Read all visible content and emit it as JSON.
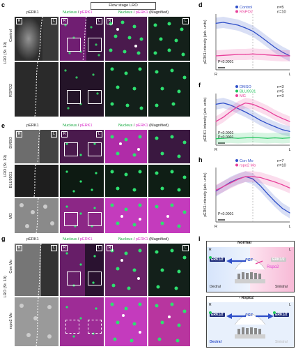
{
  "panels": {
    "c": {
      "letter": "c",
      "title": "Flow stage LRO",
      "col1": "pERK1",
      "col2_a": "Nucleus",
      "col2_sep": " / ",
      "col2_b": "pERK1",
      "col3_a": "Nucleus",
      "col3_sep": " / ",
      "col3_b": "pERK1",
      "col3_c": " (Magnified)",
      "group": "LRO (St. 19)",
      "rows": [
        "Control",
        "RSPO2"
      ]
    },
    "e": {
      "letter": "e",
      "col1": "pERK1",
      "col2_a": "Nucleus",
      "col2_sep": " / ",
      "col2_b": "pERK1",
      "col3_a": "Nucleus",
      "col3_sep": " / ",
      "col3_b": "pERK1",
      "col3_c": " (Magnified)",
      "group": "LRO (St. 19)",
      "rows": [
        "DMSO",
        "BLU9931",
        "MG"
      ]
    },
    "g": {
      "letter": "g",
      "col1": "pERK1",
      "col2_a": "Nucleus",
      "col2_sep": " / ",
      "col2_b": "pERK1",
      "col3_a": "Nucleus",
      "col3_sep": " / ",
      "col3_b": "pERK1",
      "col3_c": " (Magnified)",
      "group": "LRO (St. 19)",
      "rows": [
        "Con Mo",
        "rspo2 Mo"
      ]
    },
    "i": {
      "letter": "i",
      "normal_title": "Normal",
      "rspo2_title": "- Rspo2",
      "left": "R",
      "right": "L",
      "erk": "ERK1/2",
      "fgf": "FGF",
      "rspo2": "Rspo2",
      "dextral": "Dextral",
      "sinistral": "Sinistral"
    }
  },
  "badges": {
    "r": "R",
    "l": "L"
  },
  "colors": {
    "magenta": "#e23bd2",
    "green": "#22c55e",
    "blue": "#2f4fc8",
    "pink": "#e8409a",
    "line_pink": "#f06ab0"
  },
  "chart_data": [
    {
      "panel": "d",
      "type": "line",
      "ylabel": "pERK1 intensity (arb. units)",
      "xlabel_left": "R",
      "xlabel_right": "L",
      "pvalue": "P<0.0001",
      "ylim": [
        0,
        1.2
      ],
      "x": [
        0,
        0.1,
        0.2,
        0.3,
        0.4,
        0.5,
        0.6,
        0.7,
        0.8,
        0.9,
        1.0
      ],
      "series": [
        {
          "name": "Control",
          "n": "n=5",
          "color": "#2f4fc8",
          "values": [
            1.0,
            1.02,
            0.99,
            0.96,
            0.9,
            0.83,
            0.72,
            0.6,
            0.48,
            0.38,
            0.3
          ]
        },
        {
          "name": "RSPO2",
          "n": "n=10",
          "color": "#e8409a",
          "values": [
            0.3,
            0.31,
            0.32,
            0.33,
            0.33,
            0.34,
            0.33,
            0.32,
            0.31,
            0.3,
            0.3
          ]
        }
      ]
    },
    {
      "panel": "f",
      "type": "line",
      "ylabel": "pERK1 intensity (arb. units)",
      "xlabel_left": "R",
      "xlabel_right": "L",
      "pvalues": [
        "P<0.0001",
        "P<0.0001"
      ],
      "ylim": [
        0,
        1.2
      ],
      "x": [
        0,
        0.1,
        0.2,
        0.3,
        0.4,
        0.5,
        0.6,
        0.7,
        0.8,
        0.9,
        1.0
      ],
      "series": [
        {
          "name": "DMSO",
          "n": "n=3",
          "color": "#2f4fc8",
          "values": [
            0.95,
            0.98,
            0.93,
            0.85,
            0.77,
            0.68,
            0.58,
            0.5,
            0.43,
            0.36,
            0.32
          ]
        },
        {
          "name": "BLU9931",
          "n": "n=5",
          "color": "#22c55e",
          "values": [
            0.15,
            0.16,
            0.17,
            0.16,
            0.17,
            0.18,
            0.17,
            0.16,
            0.17,
            0.16,
            0.17
          ]
        },
        {
          "name": "MG",
          "n": "n=3",
          "color": "#e8409a",
          "values": [
            0.55,
            0.65,
            0.78,
            0.9,
            0.98,
            0.95,
            0.88,
            0.8,
            0.7,
            0.62,
            0.55
          ]
        }
      ]
    },
    {
      "panel": "h",
      "type": "line",
      "ylabel": "pERK1 intensity (arb. units)",
      "xlabel_left": "R",
      "xlabel_right": "L",
      "pvalue": "P<0.0001",
      "ylim": [
        0,
        1.2
      ],
      "x": [
        0,
        0.1,
        0.2,
        0.3,
        0.4,
        0.5,
        0.6,
        0.7,
        0.8,
        0.9,
        1.0
      ],
      "series": [
        {
          "name": "Con Mo",
          "n": "n=7",
          "color": "#2f4fc8",
          "values": [
            0.68,
            0.78,
            0.88,
            0.95,
            1.0,
            0.95,
            0.8,
            0.62,
            0.45,
            0.3,
            0.2
          ]
        },
        {
          "name": "rspo2 Mo",
          "n": "n=10",
          "color": "#e8409a",
          "values": [
            0.7,
            0.78,
            0.86,
            0.94,
            1.0,
            1.0,
            0.98,
            0.93,
            0.88,
            0.82,
            0.75
          ]
        }
      ]
    }
  ]
}
